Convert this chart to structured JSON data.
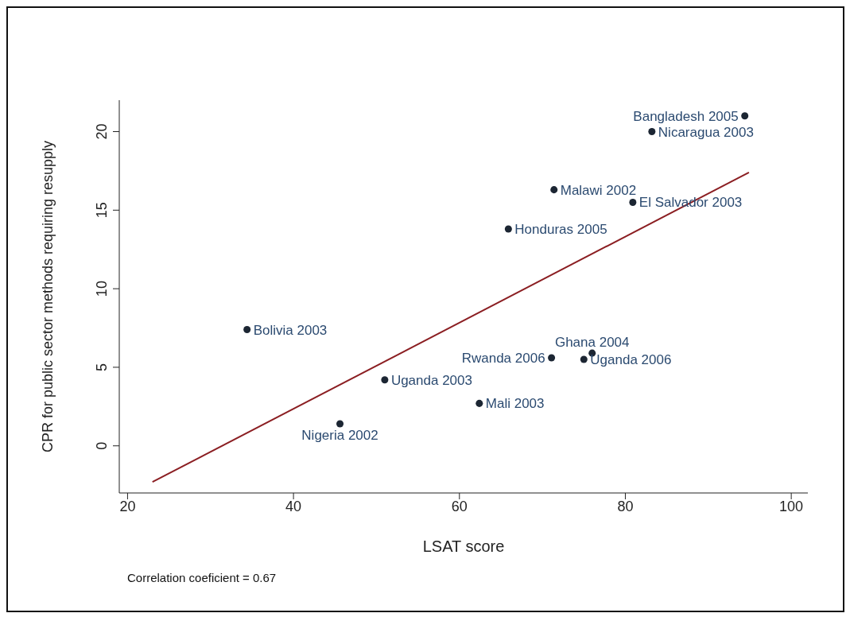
{
  "chart_data": {
    "type": "scatter",
    "xlabel": "LSAT score",
    "ylabel": "CPR for public sector methods requiring resupply",
    "xlim": [
      19,
      102
    ],
    "ylim": [
      -3,
      22
    ],
    "xticks": [
      20,
      40,
      60,
      80,
      100
    ],
    "yticks": [
      0,
      5,
      10,
      15,
      20
    ],
    "series": [
      {
        "color": "#1c2633",
        "marker": "circle",
        "x": [
          94.4,
          83.2,
          71.4,
          80.9,
          65.9,
          34.4,
          76.0,
          71.1,
          75.0,
          51.0,
          62.4,
          45.6
        ],
        "values": [
          21.0,
          20.0,
          16.3,
          15.5,
          13.8,
          7.4,
          5.9,
          5.6,
          5.5,
          4.2,
          2.7,
          1.4
        ]
      },
      {
        "type": "line",
        "color": "#8b1e22",
        "marker": "none",
        "x": [
          23,
          94.9
        ],
        "values": [
          -2.3,
          17.4
        ]
      }
    ],
    "annotations": [
      {
        "text": "Bangladesh 2005",
        "x": 94.4,
        "y": 21.0
      },
      {
        "text": "Nicaragua 2003",
        "x": 83.2,
        "y": 20.0
      },
      {
        "text": "Malawi 2002",
        "x": 71.4,
        "y": 16.3
      },
      {
        "text": "El Salvador 2003",
        "x": 80.9,
        "y": 15.5
      },
      {
        "text": "Honduras 2005",
        "x": 65.9,
        "y": 13.8
      },
      {
        "text": "Bolivia 2003",
        "x": 34.4,
        "y": 7.4
      },
      {
        "text": "Ghana 2004",
        "x": 76.0,
        "y": 5.9
      },
      {
        "text": "Rwanda 2006",
        "x": 71.1,
        "y": 5.6
      },
      {
        "text": "Uganda 2006",
        "x": 75.0,
        "y": 5.5
      },
      {
        "text": "Uganda 2003",
        "x": 51.0,
        "y": 4.2
      },
      {
        "text": "Mali 2003",
        "x": 62.4,
        "y": 2.7
      },
      {
        "text": "Nigeria 2002",
        "x": 45.6,
        "y": 1.4
      },
      "Correlation coeficient = 0.67"
    ]
  }
}
